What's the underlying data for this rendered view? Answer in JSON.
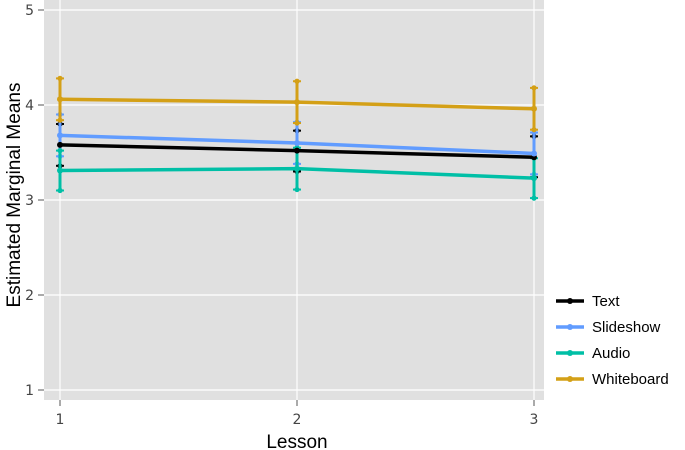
{
  "chart_data": {
    "type": "line",
    "title": "",
    "xlabel": "Lesson",
    "ylabel": "Estimated Marginal Means",
    "categories": [
      "1",
      "2",
      "3"
    ],
    "x_ticks": [
      "1",
      "2",
      "3"
    ],
    "y_ticks": [
      "1",
      "2",
      "3",
      "4",
      "5"
    ],
    "ylim": [
      0.8,
      5.1
    ],
    "grid": true,
    "legend_position": "right",
    "series": [
      {
        "name": "Text",
        "color": "#000000",
        "values": [
          3.58,
          3.52,
          3.45
        ],
        "lower": [
          3.36,
          3.3,
          3.24
        ],
        "upper": [
          3.8,
          3.73,
          3.67
        ]
      },
      {
        "name": "Slideshow",
        "color": "#619CFF",
        "values": [
          3.68,
          3.6,
          3.49
        ],
        "lower": [
          3.46,
          3.38,
          3.27
        ],
        "upper": [
          3.9,
          3.82,
          3.71
        ]
      },
      {
        "name": "Audio",
        "color": "#00BFA6",
        "values": [
          3.31,
          3.33,
          3.23
        ],
        "lower": [
          3.1,
          3.11,
          3.02
        ],
        "upper": [
          3.52,
          3.55,
          3.44
        ]
      },
      {
        "name": "Whiteboard",
        "color": "#D4A017",
        "values": [
          4.06,
          4.03,
          3.96
        ],
        "lower": [
          3.84,
          3.81,
          3.74
        ],
        "upper": [
          4.28,
          4.25,
          4.18
        ]
      }
    ]
  }
}
